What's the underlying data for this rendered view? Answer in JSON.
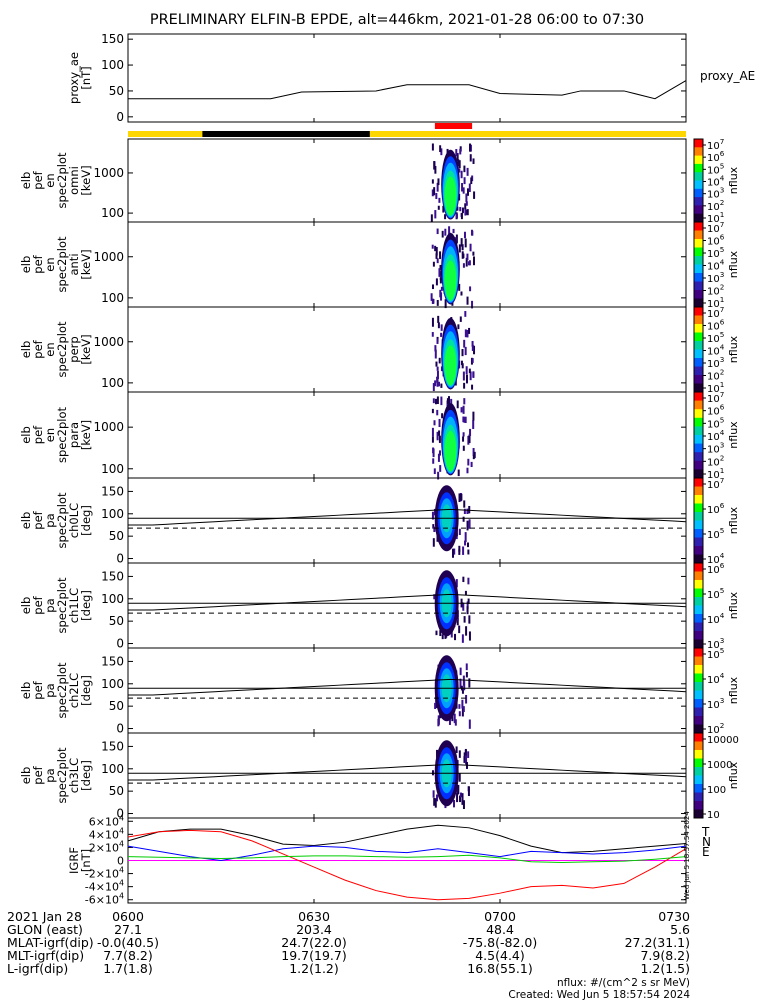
{
  "title": "PRELIMINARY ELFIN-B EPDE, alt=446km, 2021-01-28 06:00 to 07:30",
  "time_ticks": [
    "0600",
    "0630",
    "0700",
    "0730"
  ],
  "footer": {
    "rows": [
      {
        "label": "2021 Jan 28",
        "values": [
          "0600",
          "0630",
          "0700",
          "0730"
        ]
      },
      {
        "label": "GLON (east)",
        "values": [
          "27.1",
          "203.4",
          "48.4",
          "5.6"
        ]
      },
      {
        "label": "MLAT-igrf(dip)",
        "values": [
          "-0.0(40.5)",
          "24.7(22.0)",
          "-75.8(-82.0)",
          "27.2(31.1)"
        ]
      },
      {
        "label": "MLT-igrf(dip)",
        "values": [
          "7.7(8.2)",
          "19.7(19.7)",
          "4.5(4.4)",
          "7.9(8.2)"
        ]
      },
      {
        "label": "L-igrf(dip)",
        "values": [
          "1.7(1.8)",
          "1.2(1.2)",
          "16.8(55.1)",
          "1.2(1.5)"
        ]
      }
    ],
    "units_note": "nflux: #/(cm^2 s sr MeV)",
    "created": "Created: Wed Jun  5 18:57:54 2024",
    "side_stamp": "Wed Jun  5 18:57:54 2024"
  },
  "chart_data": [
    {
      "id": "proxy_ae",
      "type": "line",
      "ylabel": [
        "proxy_ae",
        "[nT]"
      ],
      "legend": "proxy_AE",
      "ylim": [
        -10,
        160
      ],
      "yticks": [
        "150",
        "100",
        "50",
        "0"
      ],
      "ytick_values": [
        150,
        100,
        50,
        0
      ],
      "x_minutes": [
        0,
        23,
        28,
        40,
        45,
        55,
        60,
        70,
        73,
        80,
        85,
        90
      ],
      "values": [
        35,
        35,
        48,
        50,
        62,
        62,
        45,
        42,
        50,
        50,
        35,
        70
      ]
    },
    {
      "id": "status_bar",
      "type": "bar",
      "colors": {
        "base": "#ffd700",
        "eclipse": "#000000",
        "science": "#ff0000"
      },
      "segments": [
        {
          "kind": "eclipse",
          "start_min": 12,
          "end_min": 39
        },
        {
          "kind": "science",
          "start_min": 49.5,
          "end_min": 55.5
        }
      ]
    },
    {
      "id": "en_omni",
      "type": "heatmap",
      "ylabel": [
        "elb",
        "pef",
        "en",
        "spec2plot",
        "omni",
        "[keV]"
      ],
      "yscale": "log",
      "ylim": [
        60,
        7000
      ],
      "yticks": [
        "1000",
        "100"
      ],
      "ytick_values": [
        1000,
        100
      ],
      "clabel": "nflux",
      "cticks": [
        "10^7",
        "10^6",
        "10^5",
        "10^4",
        "10^3",
        "10^2",
        "10^1"
      ]
    },
    {
      "id": "en_anti",
      "type": "heatmap",
      "ylabel": [
        "elb",
        "pef",
        "en",
        "spec2plot",
        "anti",
        "[keV]"
      ],
      "yscale": "log",
      "ylim": [
        60,
        7000
      ],
      "yticks": [
        "1000",
        "100"
      ],
      "ytick_values": [
        1000,
        100
      ],
      "clabel": "nflux",
      "cticks": [
        "10^7",
        "10^6",
        "10^5",
        "10^4",
        "10^3",
        "10^2",
        "10^1"
      ]
    },
    {
      "id": "en_perp",
      "type": "heatmap",
      "ylabel": [
        "elb",
        "pef",
        "en",
        "spec2plot",
        "perp",
        "[keV]"
      ],
      "yscale": "log",
      "ylim": [
        60,
        7000
      ],
      "yticks": [
        "1000",
        "100"
      ],
      "ytick_values": [
        1000,
        100
      ],
      "clabel": "nflux",
      "cticks": [
        "10^7",
        "10^6",
        "10^5",
        "10^4",
        "10^3",
        "10^2",
        "10^1"
      ]
    },
    {
      "id": "en_para",
      "type": "heatmap",
      "ylabel": [
        "elb",
        "pef",
        "en",
        "spec2plot",
        "para",
        "[keV]"
      ],
      "yscale": "log",
      "ylim": [
        60,
        7000
      ],
      "yticks": [
        "1000",
        "100"
      ],
      "ytick_values": [
        1000,
        100
      ],
      "clabel": "nflux",
      "cticks": [
        "10^7",
        "10^6",
        "10^5",
        "10^4",
        "10^3",
        "10^2",
        "10^1"
      ]
    },
    {
      "id": "ch0lc",
      "type": "heatmap",
      "ylabel": [
        "elb",
        "pef",
        "pa",
        "spec2plot",
        "ch0LC",
        "[deg]"
      ],
      "ylim": [
        -10,
        180
      ],
      "yticks": [
        "150",
        "100",
        "50",
        "0"
      ],
      "ytick_values": [
        150,
        100,
        50,
        0
      ],
      "clabel": "nflux",
      "cticks": [
        "10^7",
        "10^6",
        "10^5",
        "10^4"
      ]
    },
    {
      "id": "ch1lc",
      "type": "heatmap",
      "ylabel": [
        "elb",
        "pef",
        "pa",
        "spec2plot",
        "ch1LC",
        "[deg]"
      ],
      "ylim": [
        -10,
        180
      ],
      "yticks": [
        "150",
        "100",
        "50",
        "0"
      ],
      "ytick_values": [
        150,
        100,
        50,
        0
      ],
      "clabel": "nflux",
      "cticks": [
        "10^6",
        "10^5",
        "10^4",
        "10^3"
      ]
    },
    {
      "id": "ch2lc",
      "type": "heatmap",
      "ylabel": [
        "elb",
        "pef",
        "pa",
        "spec2plot",
        "ch2LC",
        "[deg]"
      ],
      "ylim": [
        -10,
        180
      ],
      "yticks": [
        "150",
        "100",
        "50",
        "0"
      ],
      "ytick_values": [
        150,
        100,
        50,
        0
      ],
      "clabel": "nflux",
      "cticks": [
        "10^5",
        "10^4",
        "10^3",
        "10^2"
      ]
    },
    {
      "id": "ch3lc",
      "type": "heatmap",
      "ylabel": [
        "elb",
        "pef",
        "pa",
        "spec2plot",
        "ch3LC",
        "[deg]"
      ],
      "ylim": [
        -10,
        180
      ],
      "yticks": [
        "150",
        "100",
        "50",
        "0"
      ],
      "ytick_values": [
        150,
        100,
        50,
        0
      ],
      "clabel": "nflux",
      "cticks": [
        "10000",
        "1000",
        "100",
        "10"
      ]
    },
    {
      "id": "igrf",
      "type": "line",
      "ylabel": [
        "IGRF",
        "[nT]"
      ],
      "ylim": [
        -65000,
        65000
      ],
      "yticks": [
        "6×10^4",
        "4×10^4",
        "2×10^4",
        "0",
        "-2×10^4",
        "-4×10^4",
        "-6×10^4"
      ],
      "ytick_values": [
        60000,
        40000,
        20000,
        0,
        -20000,
        -40000,
        -60000
      ],
      "x_minutes": [
        0,
        5,
        10,
        15,
        20,
        25,
        30,
        35,
        40,
        45,
        50,
        55,
        60,
        65,
        70,
        75,
        80,
        85,
        90
      ],
      "series": [
        {
          "name": "T",
          "color": "#000000",
          "values": [
            30000,
            44000,
            48000,
            48000,
            38000,
            25000,
            23000,
            28000,
            38000,
            48000,
            54000,
            50000,
            38000,
            22000,
            12000,
            14000,
            18000,
            22000,
            26000
          ]
        },
        {
          "name": "N",
          "color": "#ff00ff",
          "values": [
            0,
            0,
            0,
            0,
            0,
            0,
            0,
            0,
            0,
            0,
            0,
            0,
            0,
            0,
            0,
            0,
            0,
            0,
            0
          ]
        },
        {
          "name": "",
          "color": "#0000ff",
          "values": [
            22000,
            14000,
            6000,
            0,
            8000,
            18000,
            22000,
            20000,
            14000,
            12000,
            18000,
            12000,
            6000,
            14000,
            12000,
            10000,
            12000,
            16000,
            22000
          ]
        },
        {
          "name": "",
          "color": "#ff0000",
          "values": [
            36000,
            44000,
            46000,
            44000,
            30000,
            10000,
            -10000,
            -30000,
            -46000,
            -56000,
            -60000,
            -58000,
            -50000,
            -40000,
            -38000,
            -42000,
            -35000,
            -10000,
            18000
          ]
        },
        {
          "name": "E",
          "color": "#00cc00",
          "values": [
            6000,
            5000,
            4000,
            3000,
            4000,
            6000,
            7000,
            7000,
            6000,
            5000,
            6000,
            8000,
            4000,
            -2000,
            -3000,
            -2000,
            -1000,
            2000,
            6000
          ]
        }
      ]
    }
  ]
}
